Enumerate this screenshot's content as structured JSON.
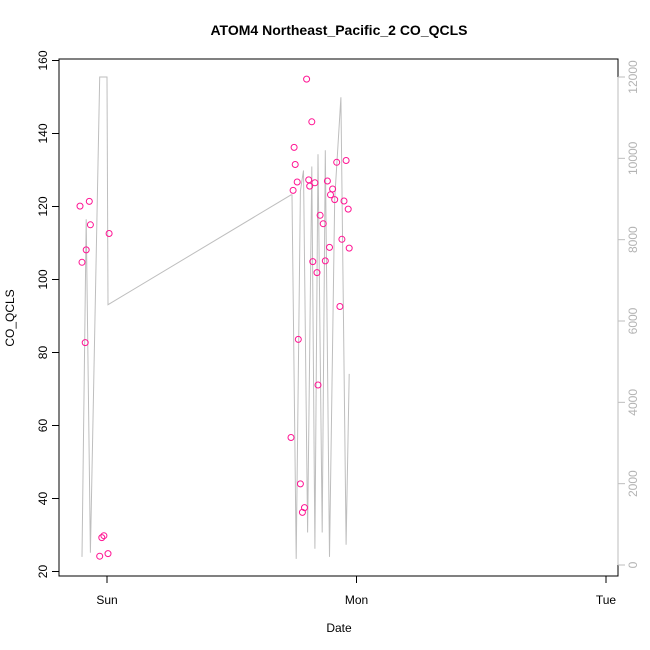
{
  "chart_data": {
    "type": "scatter",
    "title": "ATOM4 Northeast_Pacific_2 CO_QCLS",
    "xlabel": "Date",
    "ylabel": "CO_QCLS",
    "x_ticks": [
      {
        "value": 0,
        "label": "Sun"
      },
      {
        "value": 24,
        "label": "Mon"
      },
      {
        "value": 48,
        "label": "Tue"
      }
    ],
    "xlim": [
      -2.8,
      49.0
    ],
    "ylim": [
      20,
      160
    ],
    "y_ticks": [
      20,
      40,
      60,
      80,
      100,
      120,
      140,
      160
    ],
    "y2lim": [
      0,
      12000
    ],
    "y2_ticks": [
      0,
      2000,
      4000,
      6000,
      8000,
      10000,
      12000
    ],
    "colors": {
      "points": "#ff1493",
      "line": "#bebebe",
      "right_axis": "#bebebe",
      "frame": "#000000"
    },
    "series": [
      {
        "axis": "left",
        "style": "points",
        "color": "#ff1493",
        "points": [
          {
            "x": -2.6,
            "y": 120.1
          },
          {
            "x": -2.4,
            "y": 104.7
          },
          {
            "x": -2.1,
            "y": 82.7
          },
          {
            "x": -2.0,
            "y": 108.1
          },
          {
            "x": -1.7,
            "y": 121.4
          },
          {
            "x": -1.6,
            "y": 115.0
          },
          {
            "x": -0.7,
            "y": 24.2
          },
          {
            "x": -0.5,
            "y": 29.3
          },
          {
            "x": -0.3,
            "y": 29.8
          },
          {
            "x": 0.1,
            "y": 24.9
          },
          {
            "x": 0.2,
            "y": 112.6
          },
          {
            "x": 17.7,
            "y": 56.7
          },
          {
            "x": 17.9,
            "y": 124.4
          },
          {
            "x": 18.0,
            "y": 136.2
          },
          {
            "x": 18.1,
            "y": 131.5
          },
          {
            "x": 18.3,
            "y": 126.7
          },
          {
            "x": 18.4,
            "y": 83.6
          },
          {
            "x": 18.6,
            "y": 44.0
          },
          {
            "x": 18.8,
            "y": 36.2
          },
          {
            "x": 19.0,
            "y": 37.5
          },
          {
            "x": 19.2,
            "y": 154.9
          },
          {
            "x": 19.4,
            "y": 127.3
          },
          {
            "x": 19.5,
            "y": 125.6
          },
          {
            "x": 19.7,
            "y": 143.2
          },
          {
            "x": 19.8,
            "y": 104.9
          },
          {
            "x": 20.0,
            "y": 126.5
          },
          {
            "x": 20.2,
            "y": 101.9
          },
          {
            "x": 20.3,
            "y": 71.1
          },
          {
            "x": 20.5,
            "y": 117.6
          },
          {
            "x": 20.8,
            "y": 115.3
          },
          {
            "x": 21.0,
            "y": 105.1
          },
          {
            "x": 21.2,
            "y": 127.0
          },
          {
            "x": 21.4,
            "y": 108.8
          },
          {
            "x": 21.5,
            "y": 123.2
          },
          {
            "x": 21.7,
            "y": 124.8
          },
          {
            "x": 21.9,
            "y": 121.9
          },
          {
            "x": 22.1,
            "y": 132.1
          },
          {
            "x": 22.4,
            "y": 92.6
          },
          {
            "x": 22.6,
            "y": 111.0
          },
          {
            "x": 22.8,
            "y": 121.5
          },
          {
            "x": 23.0,
            "y": 132.6
          },
          {
            "x": 23.2,
            "y": 119.3
          },
          {
            "x": 23.3,
            "y": 108.6
          }
        ]
      },
      {
        "axis": "right",
        "style": "line",
        "color": "#bebebe",
        "points": [
          {
            "x": -2.4,
            "y": 200
          },
          {
            "x": -2.0,
            "y": 8500
          },
          {
            "x": -1.6,
            "y": 300
          },
          {
            "x": -0.7,
            "y": 12000
          },
          {
            "x": 0.0,
            "y": 12000
          },
          {
            "x": 0.1,
            "y": 6400
          },
          {
            "x": 17.7,
            "y": 9100
          },
          {
            "x": 17.8,
            "y": 9100
          },
          {
            "x": 18.2,
            "y": 150
          },
          {
            "x": 18.6,
            "y": 9200
          },
          {
            "x": 18.9,
            "y": 9700
          },
          {
            "x": 19.3,
            "y": 800
          },
          {
            "x": 19.7,
            "y": 9800
          },
          {
            "x": 20.0,
            "y": 400
          },
          {
            "x": 20.3,
            "y": 10100
          },
          {
            "x": 20.7,
            "y": 800
          },
          {
            "x": 21.0,
            "y": 10200
          },
          {
            "x": 21.4,
            "y": 200
          },
          {
            "x": 21.9,
            "y": 9000
          },
          {
            "x": 22.5,
            "y": 11500
          },
          {
            "x": 23.0,
            "y": 500
          },
          {
            "x": 23.3,
            "y": 4700
          }
        ]
      }
    ]
  }
}
